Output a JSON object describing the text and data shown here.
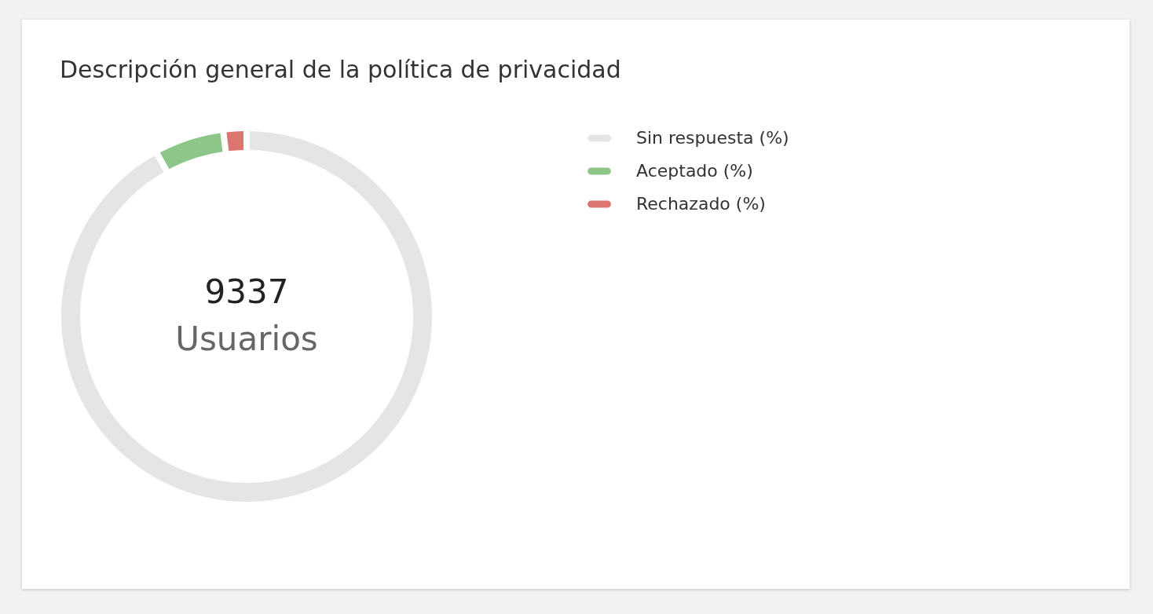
{
  "chart_data": {
    "type": "donut",
    "title": "Descripción general de la política de privacidad",
    "categories": [
      "Sin respuesta (%)",
      "Aceptado (%)",
      "Rechazado (%)"
    ],
    "values": [
      92,
      6,
      2
    ],
    "colors": [
      "#e4e5e4",
      "#8ec689",
      "#dc7470"
    ],
    "annotations": [
      "9337",
      "Usuarios"
    ],
    "legend": "right"
  }
}
